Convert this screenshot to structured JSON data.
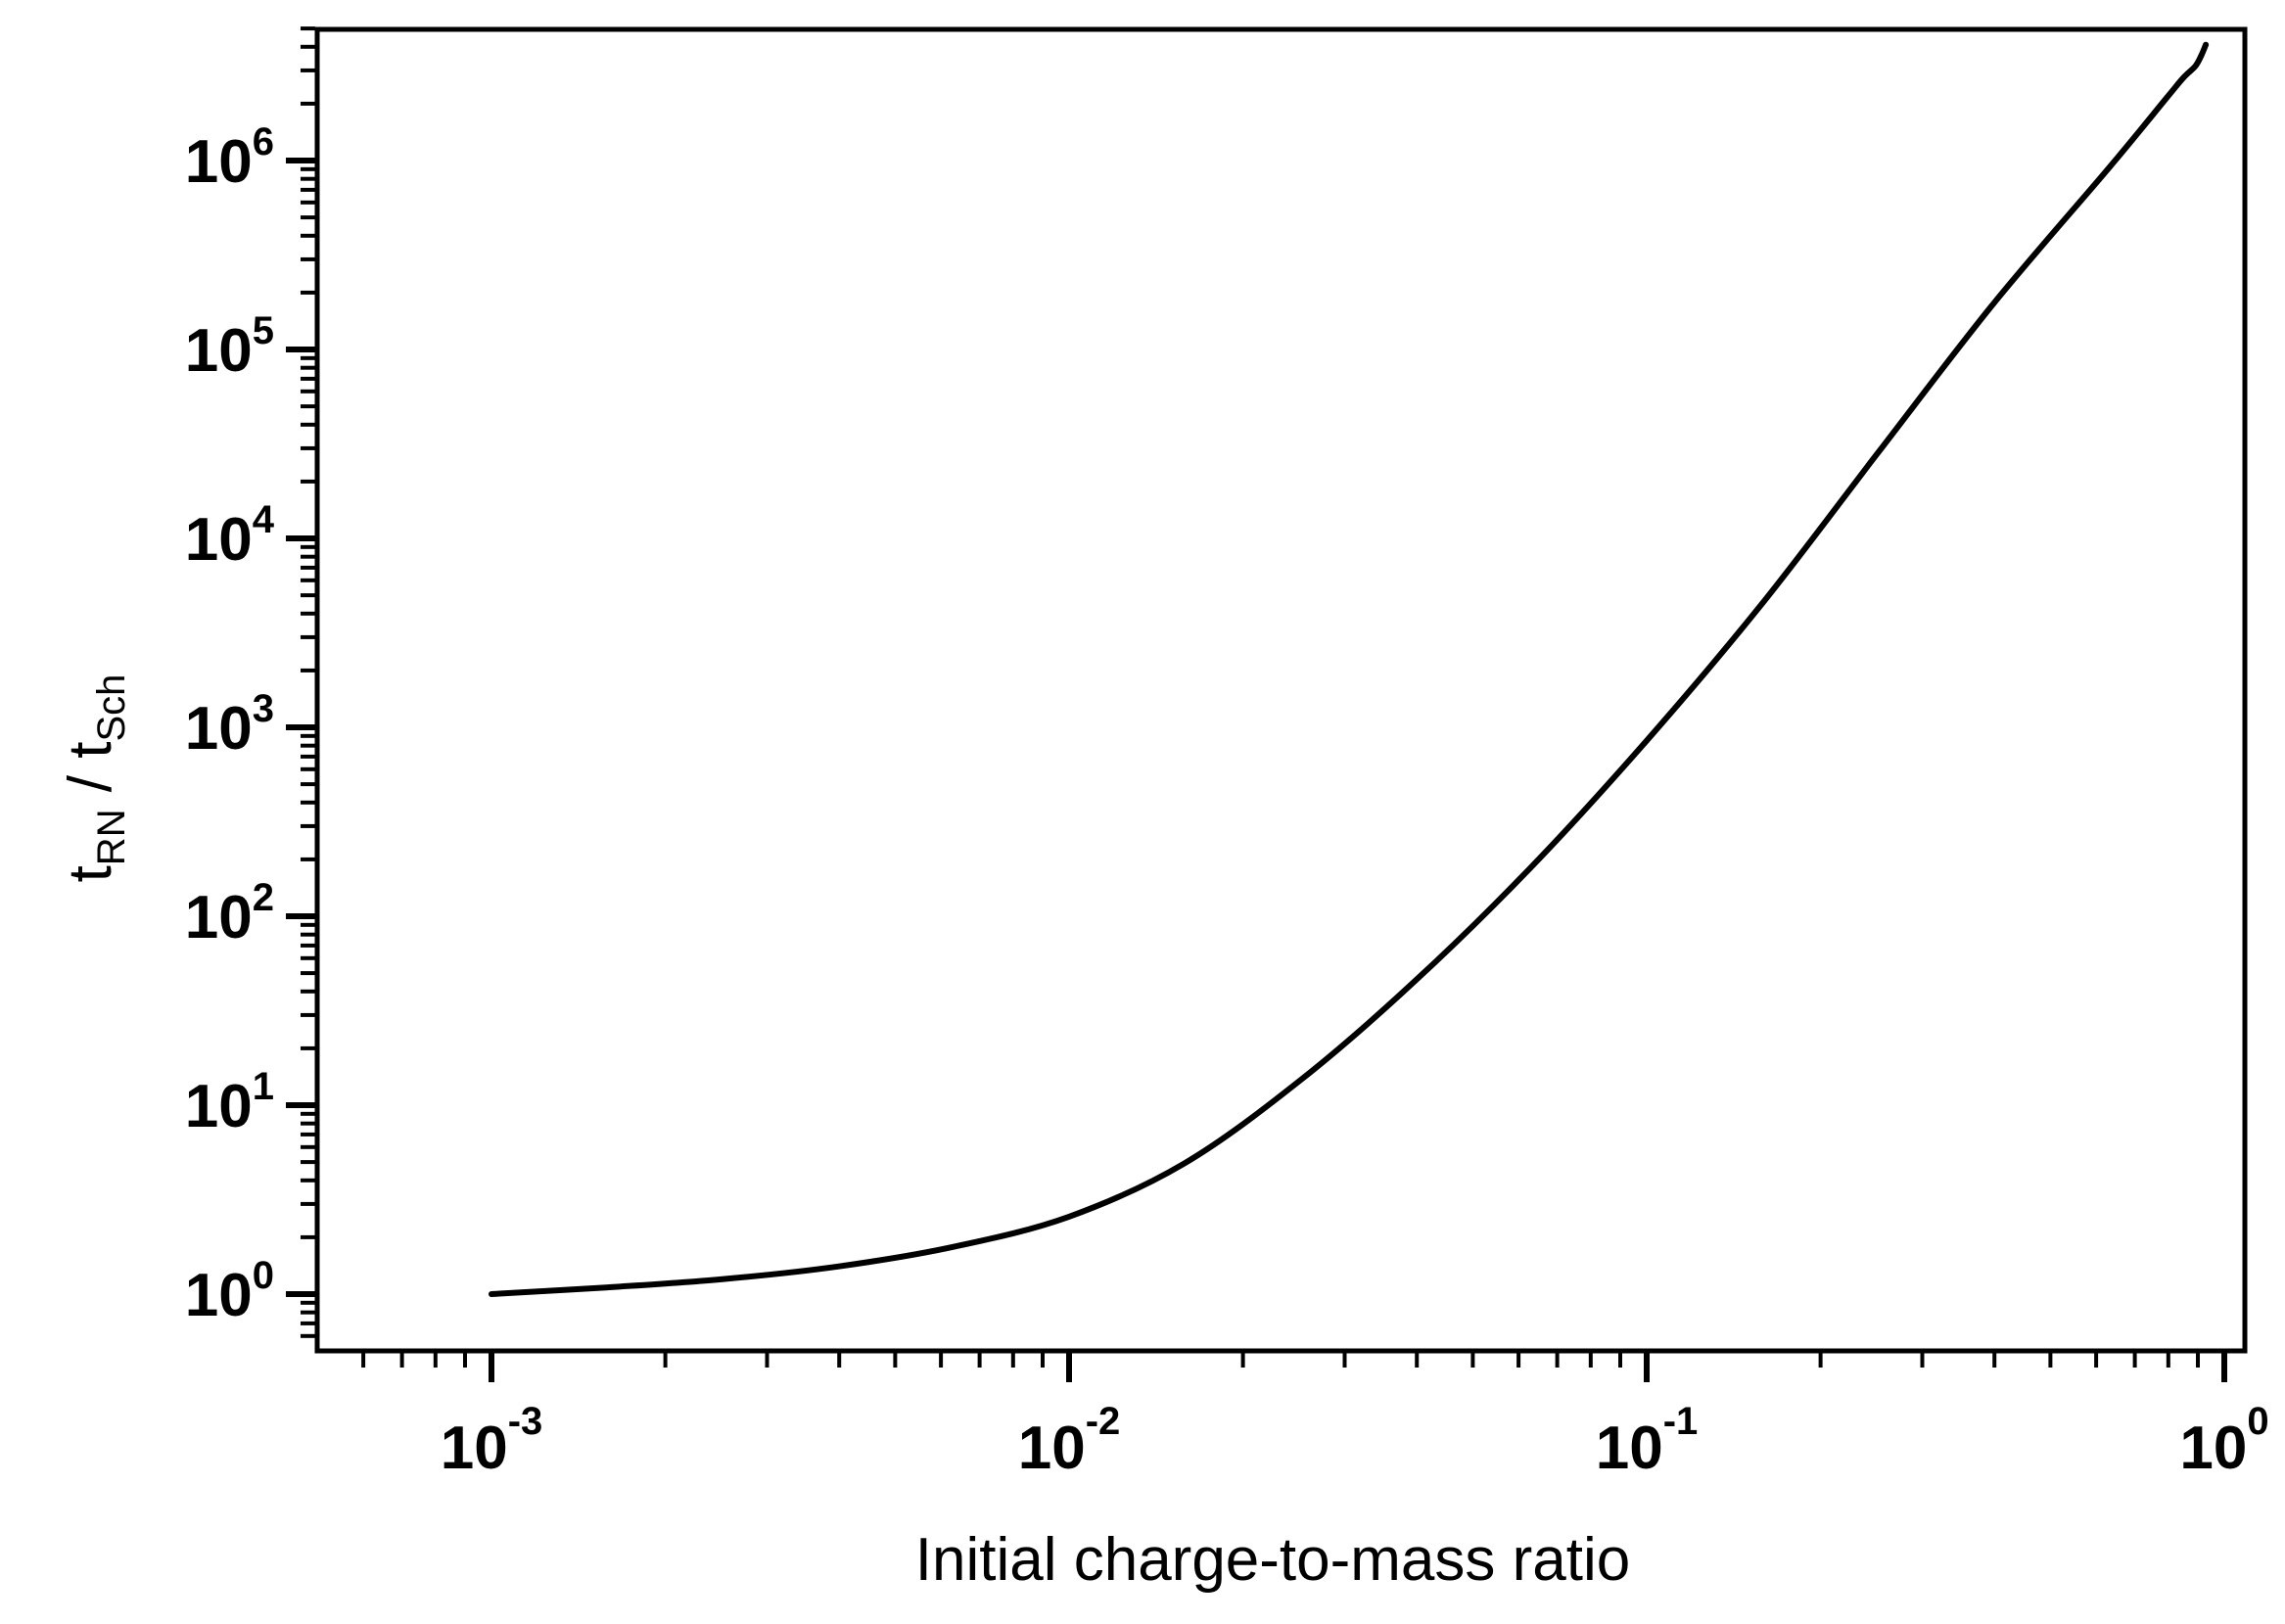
{
  "figure": {
    "background": "#ffffff",
    "ink": "#000000"
  },
  "x_axis": {
    "title": "Initial charge-to-mass ratio",
    "scale": "log",
    "major_tick_exponents": [
      -3,
      -2,
      -1,
      0
    ],
    "min": 0.0005,
    "max": 1.09
  },
  "y_axis": {
    "title_parts": [
      {
        "text": "t"
      },
      {
        "sub": "RN"
      },
      {
        "text": " / t"
      },
      {
        "sub": "Sch"
      }
    ],
    "scale": "log",
    "major_tick_exponents": [
      0,
      1,
      2,
      3,
      4,
      5,
      6
    ],
    "min": 0.5,
    "max": 4900000
  },
  "chart_data": {
    "type": "line",
    "title": "",
    "xlabel": "Initial charge-to-mass ratio",
    "ylabel": "t_RN / t_Sch",
    "x_scale": "log",
    "y_scale": "log",
    "xlim": [
      0.0005,
      1.09
    ],
    "ylim": [
      0.5,
      4900000
    ],
    "grid": false,
    "legend": false,
    "line_color": "#000000",
    "series": [
      {
        "name": "t_RN / t_Sch",
        "points": [
          [
            0.001,
            1.0
          ],
          [
            0.00158,
            1.085
          ],
          [
            0.00251,
            1.2
          ],
          [
            0.00398,
            1.4
          ],
          [
            0.00631,
            1.78
          ],
          [
            0.01,
            2.57
          ],
          [
            0.0158,
            4.9
          ],
          [
            0.0251,
            13.5
          ],
          [
            0.0398,
            45.7
          ],
          [
            0.0631,
            182
          ],
          [
            0.1,
            850
          ],
          [
            0.158,
            4470
          ],
          [
            0.251,
            28200
          ],
          [
            0.398,
            174000
          ],
          [
            0.631,
            912000
          ],
          [
            0.794,
            2140000
          ],
          [
            0.85,
            2750000
          ],
          [
            0.891,
            3160000
          ],
          [
            0.912,
            3590000
          ],
          [
            0.929,
            4100000
          ]
        ]
      }
    ]
  }
}
